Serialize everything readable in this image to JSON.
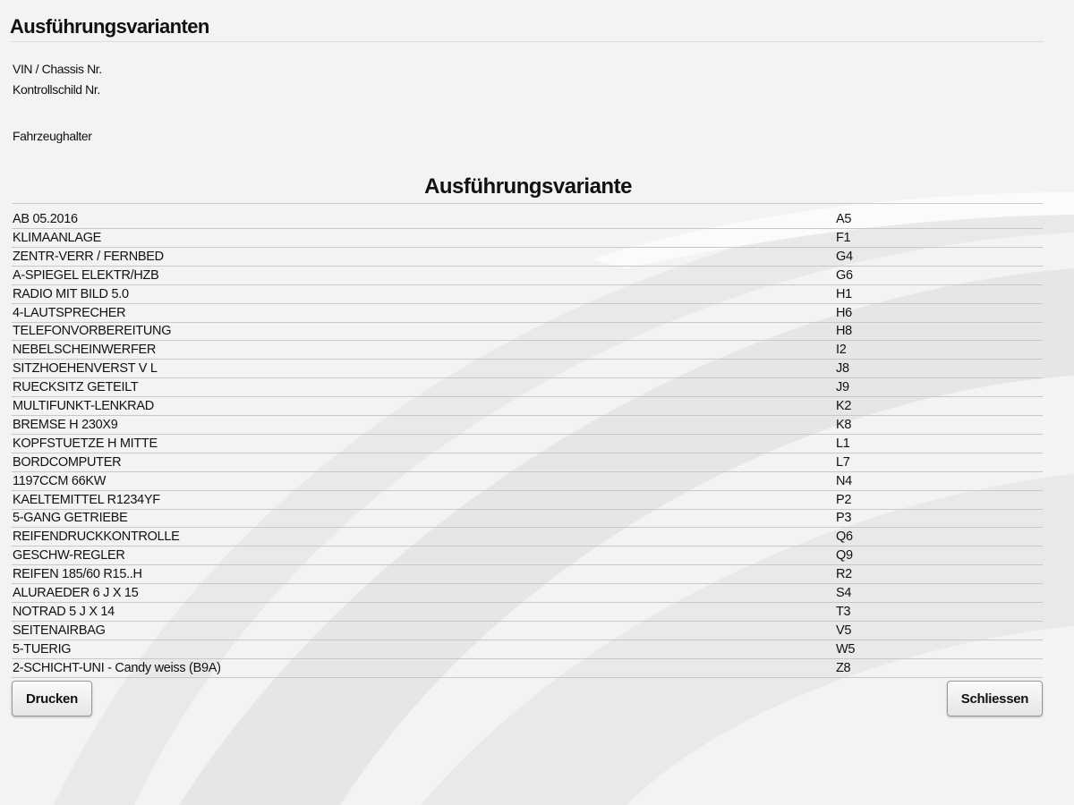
{
  "header": {
    "title": "Ausführungsvarianten"
  },
  "fields": [
    "VIN / Chassis Nr.",
    "Kontrollschild Nr.",
    "Fahrzeughalter"
  ],
  "table": {
    "title": "Ausführungsvariante",
    "rows": [
      [
        "AB 05.2016",
        "A5"
      ],
      [
        "KLIMAANLAGE",
        "F1"
      ],
      [
        "ZENTR-VERR / FERNBED",
        "G4"
      ],
      [
        "A-SPIEGEL ELEKTR/HZB",
        "G6"
      ],
      [
        "RADIO MIT BILD 5.0",
        "H1"
      ],
      [
        "4-LAUTSPRECHER",
        "H6"
      ],
      [
        "TELEFONVORBEREITUNG",
        "H8"
      ],
      [
        "NEBELSCHEINWERFER",
        "I2"
      ],
      [
        "SITZHOEHENVERST V L",
        "J8"
      ],
      [
        "RUECKSITZ GETEILT",
        "J9"
      ],
      [
        "MULTIFUNKT-LENKRAD",
        "K2"
      ],
      [
        "BREMSE H 230X9",
        "K8"
      ],
      [
        "KOPFSTUETZE H MITTE",
        "L1"
      ],
      [
        "BORDCOMPUTER",
        "L7"
      ],
      [
        "1197CCM 66KW",
        "N4"
      ],
      [
        "KAELTEMITTEL R1234YF",
        "P2"
      ],
      [
        "5-GANG GETRIEBE",
        "P3"
      ],
      [
        "REIFENDRUCKKONTROLLE",
        "Q6"
      ],
      [
        "GESCHW-REGLER",
        "Q9"
      ],
      [
        "REIFEN 185/60 R15..H",
        "R2"
      ],
      [
        "ALURAEDER 6 J X 15",
        "S4"
      ],
      [
        "NOTRAD 5 J X 14",
        "T3"
      ],
      [
        "SEITENAIRBAG",
        "V5"
      ],
      [
        "5-TUERIG",
        "W5"
      ],
      [
        "2-SCHICHT-UNI - Candy weiss (B9A)",
        "Z8"
      ]
    ]
  },
  "buttons": {
    "print": "Drucken",
    "close": "Schliessen"
  }
}
